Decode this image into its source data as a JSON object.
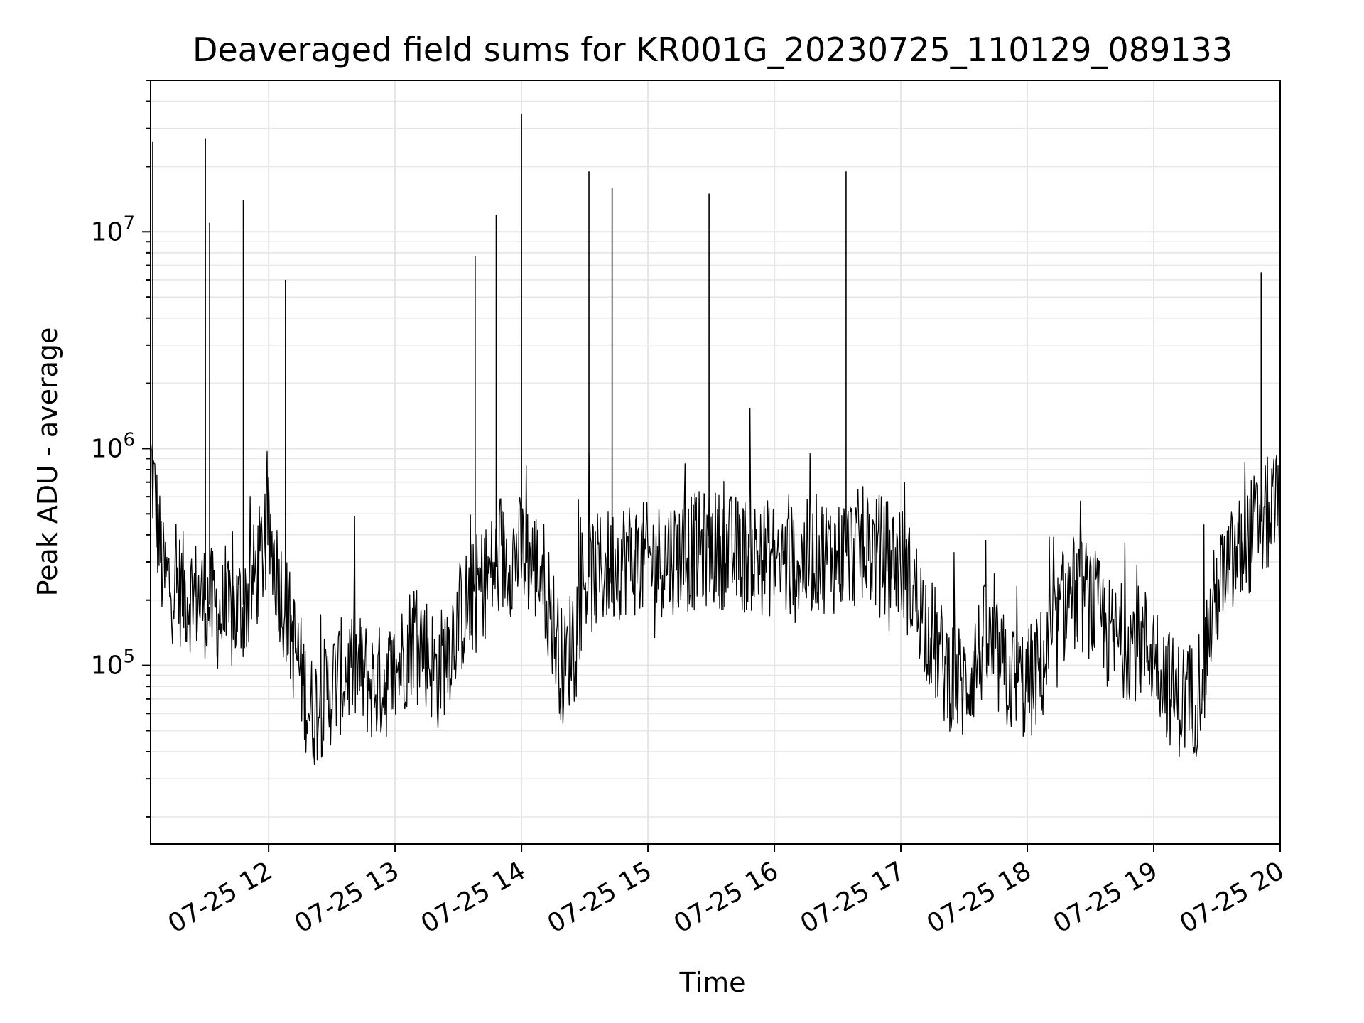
{
  "chart_data": {
    "type": "line",
    "title": "Deaveraged field sums for KR001G_20230725_110129_089133",
    "xlabel": "Time",
    "ylabel": "Peak ADU - average",
    "y_scale": "log",
    "ylim": [
      15000,
      50000000
    ],
    "xlim": [
      "2023-07-25 11:04",
      "2023-07-25 20:00"
    ],
    "grid": true,
    "line_color": "#000000",
    "grid_color": "#e6e6e6",
    "x_ticks": [
      {
        "value": "2023-07-25 12:00",
        "label": "07-25 12"
      },
      {
        "value": "2023-07-25 13:00",
        "label": "07-25 13"
      },
      {
        "value": "2023-07-25 14:00",
        "label": "07-25 14"
      },
      {
        "value": "2023-07-25 15:00",
        "label": "07-25 15"
      },
      {
        "value": "2023-07-25 16:00",
        "label": "07-25 16"
      },
      {
        "value": "2023-07-25 17:00",
        "label": "07-25 17"
      },
      {
        "value": "2023-07-25 18:00",
        "label": "07-25 18"
      },
      {
        "value": "2023-07-25 19:00",
        "label": "07-25 19"
      },
      {
        "value": "2023-07-25 20:00",
        "label": "07-25 20"
      }
    ],
    "y_ticks": [
      {
        "value": 100000,
        "base": "10",
        "exp": "5"
      },
      {
        "value": 1000000,
        "base": "10",
        "exp": "6"
      },
      {
        "value": 10000000,
        "base": "10",
        "exp": "7"
      }
    ],
    "x": [
      "2023-07-25 11:04",
      "2023-07-25 11:10",
      "2023-07-25 11:20",
      "2023-07-25 11:30",
      "2023-07-25 11:40",
      "2023-07-25 11:50",
      "2023-07-25 12:00",
      "2023-07-25 12:10",
      "2023-07-25 12:20",
      "2023-07-25 12:30",
      "2023-07-25 12:40",
      "2023-07-25 12:50",
      "2023-07-25 13:00",
      "2023-07-25 13:10",
      "2023-07-25 13:20",
      "2023-07-25 13:30",
      "2023-07-25 13:40",
      "2023-07-25 13:50",
      "2023-07-25 14:00",
      "2023-07-25 14:10",
      "2023-07-25 14:20",
      "2023-07-25 14:30",
      "2023-07-25 14:40",
      "2023-07-25 14:50",
      "2023-07-25 15:00",
      "2023-07-25 15:10",
      "2023-07-25 15:20",
      "2023-07-25 15:30",
      "2023-07-25 15:40",
      "2023-07-25 15:50",
      "2023-07-25 16:00",
      "2023-07-25 16:10",
      "2023-07-25 16:20",
      "2023-07-25 16:30",
      "2023-07-25 16:40",
      "2023-07-25 16:50",
      "2023-07-25 17:00",
      "2023-07-25 17:10",
      "2023-07-25 17:20",
      "2023-07-25 17:30",
      "2023-07-25 17:40",
      "2023-07-25 17:50",
      "2023-07-25 18:00",
      "2023-07-25 18:10",
      "2023-07-25 18:20",
      "2023-07-25 18:30",
      "2023-07-25 18:40",
      "2023-07-25 18:50",
      "2023-07-25 19:00",
      "2023-07-25 19:10",
      "2023-07-25 19:20",
      "2023-07-25 19:30",
      "2023-07-25 19:40",
      "2023-07-25 19:50",
      "2023-07-25 20:00"
    ],
    "y": [
      900000,
      250000,
      220000,
      200000,
      160000,
      200000,
      400000,
      150000,
      60000,
      80000,
      100000,
      80000,
      90000,
      150000,
      90000,
      160000,
      230000,
      300000,
      330000,
      270000,
      90000,
      250000,
      280000,
      320000,
      300000,
      320000,
      330000,
      350000,
      330000,
      320000,
      310000,
      290000,
      330000,
      320000,
      350000,
      330000,
      300000,
      180000,
      100000,
      80000,
      130000,
      90000,
      80000,
      110000,
      220000,
      200000,
      130000,
      130000,
      120000,
      70000,
      70000,
      220000,
      320000,
      450000,
      550000
    ],
    "spikes": [
      {
        "x": "2023-07-25 11:05",
        "y": 26000000
      },
      {
        "x": "2023-07-25 11:30",
        "y": 27000000
      },
      {
        "x": "2023-07-25 11:32",
        "y": 11000000
      },
      {
        "x": "2023-07-25 11:48",
        "y": 14000000
      },
      {
        "x": "2023-07-25 12:08",
        "y": 6000000
      },
      {
        "x": "2023-07-25 13:38",
        "y": 7700000
      },
      {
        "x": "2023-07-25 13:48",
        "y": 12000000
      },
      {
        "x": "2023-07-25 14:00",
        "y": 35000000
      },
      {
        "x": "2023-07-25 14:32",
        "y": 19000000
      },
      {
        "x": "2023-07-25 14:43",
        "y": 16000000
      },
      {
        "x": "2023-07-25 15:29",
        "y": 15000000
      },
      {
        "x": "2023-07-25 16:34",
        "y": 19000000
      },
      {
        "x": "2023-07-25 19:51",
        "y": 6500000
      }
    ]
  }
}
